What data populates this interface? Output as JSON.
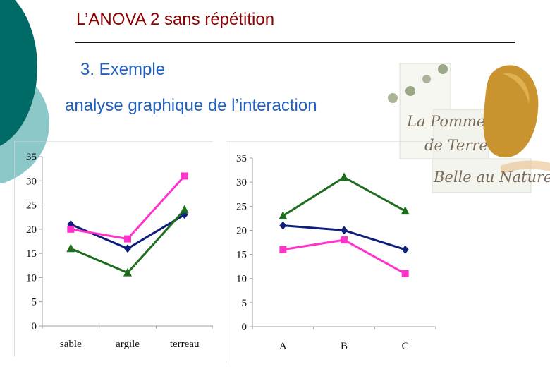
{
  "slide": {
    "title": "L’ANOVA 2 sans répétition",
    "subtitle": "3. Exemple",
    "body_line": "analyse graphique de l’interaction"
  },
  "logo": {
    "line1": "La Pomme",
    "line2": "de Terre",
    "line3": "Belle au Naturel"
  },
  "colors": {
    "accent_teal": "#006b66",
    "accent_light_teal": "#8cc8c8",
    "title": "#8b0000",
    "subtitle": "#1f5fbf",
    "series_navy": "#0d1f7a",
    "series_magenta": "#ff33cc",
    "series_green": "#1f6e1f"
  },
  "chart_data": [
    {
      "type": "line",
      "categories": [
        "sable",
        "argile",
        "terreau"
      ],
      "ylim": [
        0,
        35
      ],
      "yticks": [
        "0",
        "5",
        "10",
        "15",
        "20",
        "25",
        "30",
        "35"
      ],
      "grid": false,
      "series": [
        {
          "marker": "diamond",
          "color": "#0d1f7a",
          "values": [
            21,
            16,
            23
          ]
        },
        {
          "marker": "square",
          "color": "#ff33cc",
          "values": [
            20,
            18,
            31
          ]
        },
        {
          "marker": "triangle",
          "color": "#1f6e1f",
          "values": [
            16,
            11,
            24
          ]
        }
      ]
    },
    {
      "type": "line",
      "categories": [
        "A",
        "B",
        "C"
      ],
      "ylim": [
        0,
        35
      ],
      "yticks": [
        "0",
        "5",
        "10",
        "15",
        "20",
        "25",
        "30",
        "35"
      ],
      "grid": false,
      "series": [
        {
          "marker": "diamond",
          "color": "#0d1f7a",
          "values": [
            21,
            20,
            16
          ]
        },
        {
          "marker": "square",
          "color": "#ff33cc",
          "values": [
            16,
            18,
            11
          ]
        },
        {
          "marker": "triangle",
          "color": "#1f6e1f",
          "values": [
            23,
            31,
            24
          ]
        }
      ]
    }
  ]
}
